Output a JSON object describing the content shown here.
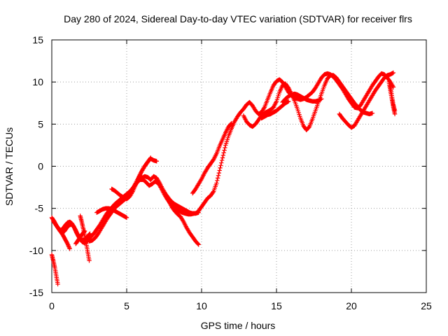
{
  "chart_data": {
    "type": "scatter",
    "title": "Day 280 of 2024, Sidereal Day-to-day VTEC variation (SDTVAR) for receiver flrs",
    "xlabel": "GPS time / hours",
    "ylabel": "SDTVAR / TECUs",
    "xlim": [
      0,
      25
    ],
    "ylim": [
      -15,
      15
    ],
    "xticks": [
      0,
      5,
      10,
      15,
      20,
      25
    ],
    "yticks": [
      -15,
      -10,
      -5,
      0,
      5,
      10,
      15
    ],
    "grid": true,
    "marker": "plus",
    "series_color": "#ff0000",
    "series": [
      {
        "x": [
          0.0,
          0.1,
          0.2,
          0.3,
          0.4
        ],
        "y": [
          -10.5,
          -11.2,
          -12.0,
          -13.0,
          -14.0
        ]
      },
      {
        "x": [
          0.0,
          0.15,
          0.3,
          0.45,
          0.6,
          0.75,
          0.9,
          1.05,
          1.2,
          1.35,
          1.5,
          1.65,
          1.8,
          1.95,
          2.1,
          2.25,
          2.4,
          2.55
        ],
        "y": [
          -6.1,
          -6.5,
          -7.0,
          -7.4,
          -7.6,
          -7.4,
          -7.0,
          -6.7,
          -6.6,
          -6.8,
          -7.3,
          -7.9,
          -8.4,
          -8.7,
          -8.8,
          -8.6,
          -8.3,
          -8.0
        ]
      },
      {
        "x": [
          0.1,
          0.25,
          0.4,
          0.55,
          0.7,
          0.85,
          1.0,
          1.15,
          1.3,
          1.45,
          1.6,
          1.75,
          1.9,
          2.05,
          2.2,
          2.35,
          2.5
        ],
        "y": [
          -6.5,
          -6.9,
          -7.3,
          -7.7,
          -7.9,
          -7.7,
          -7.3,
          -7.0,
          -6.9,
          -7.1,
          -7.6,
          -8.2,
          -8.7,
          -9.0,
          -9.1,
          -8.9,
          -8.7
        ]
      },
      {
        "x": [
          0.6,
          0.75,
          0.9,
          1.05,
          1.2
        ],
        "y": [
          -7.8,
          -8.2,
          -8.7,
          -9.2,
          -9.8
        ]
      },
      {
        "x": [
          1.9,
          2.0,
          2.1,
          2.2,
          2.3,
          2.4,
          2.5
        ],
        "y": [
          -5.9,
          -6.6,
          -7.4,
          -8.3,
          -9.2,
          -10.2,
          -11.2
        ]
      },
      {
        "x": [
          1.6,
          1.75,
          1.9,
          2.05,
          2.2
        ],
        "y": [
          -9.2,
          -8.8,
          -8.4,
          -8.0,
          -7.7
        ]
      },
      {
        "x": [
          2.2,
          2.4,
          2.6,
          2.8,
          3.0,
          3.2,
          3.4,
          3.6,
          3.8,
          4.0,
          4.2,
          4.4,
          4.6,
          4.8,
          5.0,
          5.2,
          5.4,
          5.6,
          5.8,
          6.0,
          6.2,
          6.4,
          6.6,
          6.8,
          7.0,
          7.2,
          7.4,
          7.6,
          7.8,
          8.0,
          8.2,
          8.4,
          8.6,
          8.8,
          9.0,
          9.2,
          9.4,
          9.6,
          9.8
        ],
        "y": [
          -8.5,
          -8.6,
          -8.4,
          -8.0,
          -7.5,
          -7.0,
          -6.4,
          -5.8,
          -5.3,
          -4.9,
          -4.5,
          -4.2,
          -3.9,
          -3.6,
          -3.3,
          -3.0,
          -2.6,
          -2.1,
          -1.7,
          -1.4,
          -1.2,
          -1.3,
          -1.6,
          -1.2,
          -1.4,
          -2.0,
          -2.7,
          -3.3,
          -3.8,
          -4.2,
          -4.5,
          -4.7,
          -4.9,
          -5.1,
          -5.3,
          -5.5,
          -5.6,
          -5.6,
          -5.5
        ]
      },
      {
        "x": [
          2.5,
          2.7,
          2.9,
          3.1,
          3.3,
          3.5,
          3.7,
          3.9,
          4.1,
          4.3,
          4.5,
          4.7,
          4.9,
          5.1,
          5.3,
          5.5,
          5.7,
          5.9,
          6.1,
          6.3,
          6.5,
          6.7,
          6.9,
          7.1,
          7.3,
          7.5,
          7.7,
          7.9,
          8.1,
          8.3,
          8.5,
          8.7,
          8.9,
          9.1,
          9.3,
          9.5
        ],
        "y": [
          -8.9,
          -8.8,
          -8.5,
          -8.0,
          -7.4,
          -6.8,
          -6.2,
          -5.7,
          -5.2,
          -4.8,
          -4.5,
          -4.2,
          -3.9,
          -3.5,
          -3.0,
          -2.4,
          -1.9,
          -1.6,
          -1.6,
          -1.9,
          -2.3,
          -2.1,
          -1.8,
          -2.0,
          -2.6,
          -3.3,
          -3.9,
          -4.4,
          -4.8,
          -5.1,
          -5.3,
          -5.5,
          -5.6,
          -5.7,
          -5.7,
          -5.6
        ]
      },
      {
        "x": [
          4.0,
          4.2,
          4.4,
          4.6,
          4.8,
          5.0,
          5.2,
          5.4,
          5.6,
          5.8,
          6.0,
          6.2,
          6.4,
          6.6,
          6.8,
          7.0
        ],
        "y": [
          -2.7,
          -2.9,
          -3.2,
          -3.5,
          -3.7,
          -3.9,
          -3.6,
          -3.0,
          -2.2,
          -1.4,
          -0.6,
          0.0,
          0.5,
          0.9,
          0.7,
          0.6
        ]
      },
      {
        "x": [
          4.2,
          4.4,
          4.6,
          4.8,
          5.0,
          5.2,
          5.4,
          5.6,
          5.8,
          6.0,
          6.2,
          6.4,
          6.6
        ],
        "y": [
          -4.6,
          -4.4,
          -4.2,
          -4.0,
          -3.7,
          -3.3,
          -2.7,
          -2.0,
          -1.3,
          -0.6,
          0.0,
          0.5,
          1.0
        ]
      },
      {
        "x": [
          3.0,
          3.2,
          3.4,
          3.6,
          3.8,
          4.0,
          4.2,
          4.4,
          4.6,
          4.8,
          5.0
        ],
        "y": [
          -5.5,
          -5.3,
          -5.1,
          -5.0,
          -5.0,
          -5.1,
          -5.3,
          -5.5,
          -5.7,
          -5.9,
          -6.1
        ]
      },
      {
        "x": [
          7.6,
          7.8,
          8.0,
          8.2,
          8.4,
          8.6,
          8.8,
          9.0,
          9.2,
          9.4,
          9.6,
          9.8
        ],
        "y": [
          -3.4,
          -4.1,
          -4.8,
          -5.3,
          -5.7,
          -6.0,
          -6.6,
          -7.3,
          -7.9,
          -8.4,
          -8.9,
          -9.3
        ]
      },
      {
        "x": [
          9.4,
          9.6,
          9.8,
          10.0,
          10.2,
          10.4,
          10.6,
          10.8,
          11.0,
          11.2,
          11.4,
          11.6,
          11.8,
          12.0
        ],
        "y": [
          -3.2,
          -2.7,
          -2.1,
          -1.5,
          -0.8,
          -0.2,
          0.3,
          0.8,
          1.5,
          2.4,
          3.2,
          4.0,
          4.7,
          5.1
        ]
      },
      {
        "x": [
          9.6,
          9.8,
          10.0,
          10.2,
          10.4,
          10.6,
          10.8,
          11.0,
          11.2,
          11.4,
          11.6,
          11.8,
          12.0,
          12.2,
          12.4,
          12.6,
          12.8,
          13.0,
          13.2,
          13.4,
          13.6,
          13.8,
          14.0,
          14.2,
          14.4,
          14.6,
          14.8,
          15.0,
          15.2,
          15.4,
          15.6,
          15.8,
          16.0,
          16.2,
          16.4,
          16.6,
          16.8,
          17.0,
          17.2,
          17.4,
          17.6,
          17.8,
          18.0,
          18.2,
          18.4,
          18.6,
          18.8,
          19.0,
          19.2,
          19.4,
          19.6,
          19.8,
          20.0,
          20.2,
          20.4,
          20.6,
          20.8,
          21.0,
          21.2,
          21.4,
          21.6,
          21.8,
          22.0,
          22.2,
          22.4,
          22.6,
          22.8
        ],
        "y": [
          -5.6,
          -5.3,
          -4.8,
          -4.3,
          -3.8,
          -3.5,
          -3.0,
          -2.0,
          -0.5,
          1.0,
          2.5,
          3.6,
          4.5,
          5.3,
          5.9,
          6.4,
          6.8,
          7.3,
          7.6,
          7.2,
          6.6,
          6.2,
          6.4,
          7.0,
          7.9,
          8.8,
          9.6,
          10.1,
          10.3,
          10.0,
          9.4,
          8.8,
          8.4,
          8.1,
          8.0,
          7.9,
          8.0,
          8.2,
          8.5,
          8.8,
          9.3,
          9.9,
          10.5,
          10.9,
          11.0,
          10.9,
          10.6,
          10.2,
          9.7,
          9.2,
          8.6,
          8.0,
          7.5,
          7.0,
          6.9,
          7.2,
          7.8,
          8.4,
          9.0,
          9.6,
          10.1,
          10.6,
          11.0,
          10.9,
          10.5,
          10.0,
          9.4
        ]
      },
      {
        "x": [
          12.8,
          13.0,
          13.2,
          13.4,
          13.6,
          13.8,
          14.0,
          14.2,
          14.4,
          14.6,
          14.8,
          15.0,
          15.2,
          15.4,
          15.6,
          15.8,
          16.0,
          16.2,
          16.4,
          16.6,
          16.8,
          17.0,
          17.2,
          17.4,
          17.6,
          17.8,
          18.0,
          18.2,
          18.4,
          18.6,
          18.8,
          19.0,
          19.2,
          19.4,
          19.6,
          19.8,
          20.0,
          20.2,
          20.4
        ],
        "y": [
          6.0,
          5.3,
          4.9,
          4.7,
          5.0,
          5.5,
          6.0,
          6.3,
          6.5,
          6.7,
          7.0,
          7.7,
          8.8,
          9.6,
          9.8,
          9.3,
          8.6,
          7.8,
          6.8,
          5.7,
          4.8,
          4.3,
          4.7,
          5.6,
          6.6,
          7.6,
          8.6,
          9.6,
          10.4,
          10.8,
          10.8,
          10.5,
          10.0,
          9.5,
          9.0,
          8.5,
          8.0,
          7.5,
          7.1
        ]
      },
      {
        "x": [
          15.4,
          15.6,
          15.8,
          16.0,
          16.2,
          16.4,
          16.6,
          16.8,
          17.0,
          17.2,
          17.4,
          17.6,
          17.8,
          18.0
        ],
        "y": [
          7.6,
          8.0,
          8.3,
          8.5,
          8.6,
          8.5,
          8.3,
          8.1,
          7.9,
          7.8,
          7.7,
          7.7,
          7.8,
          8.0
        ]
      },
      {
        "x": [
          14.0,
          14.2,
          14.4,
          14.6,
          14.8,
          15.0,
          15.2,
          15.4,
          15.6,
          15.8
        ],
        "y": [
          5.7,
          5.9,
          6.1,
          6.2,
          6.4,
          6.6,
          6.9,
          7.2,
          7.5,
          7.7
        ]
      },
      {
        "x": [
          19.2,
          19.4,
          19.6,
          19.8,
          20.0,
          20.2,
          20.4,
          20.6,
          20.8,
          21.0,
          21.2,
          21.4,
          21.6,
          21.8,
          22.0,
          22.2,
          22.4,
          22.6,
          22.8
        ],
        "y": [
          6.2,
          5.7,
          5.3,
          4.9,
          4.6,
          4.8,
          5.4,
          6.0,
          6.6,
          7.2,
          7.8,
          8.4,
          9.0,
          9.5,
          10.0,
          10.5,
          10.8,
          10.9,
          11.1
        ]
      },
      {
        "x": [
          20.4,
          20.6,
          20.8,
          21.0,
          21.2,
          21.4
        ],
        "y": [
          7.0,
          6.7,
          6.4,
          6.3,
          6.2,
          6.3
        ]
      },
      {
        "x": [
          22.5,
          22.6,
          22.7,
          22.8,
          22.9
        ],
        "y": [
          10.0,
          9.0,
          8.0,
          7.0,
          6.2
        ]
      },
      {
        "x": [
          22.6,
          22.7,
          22.8,
          22.9
        ],
        "y": [
          9.5,
          8.4,
          7.3,
          6.6
        ]
      }
    ]
  }
}
